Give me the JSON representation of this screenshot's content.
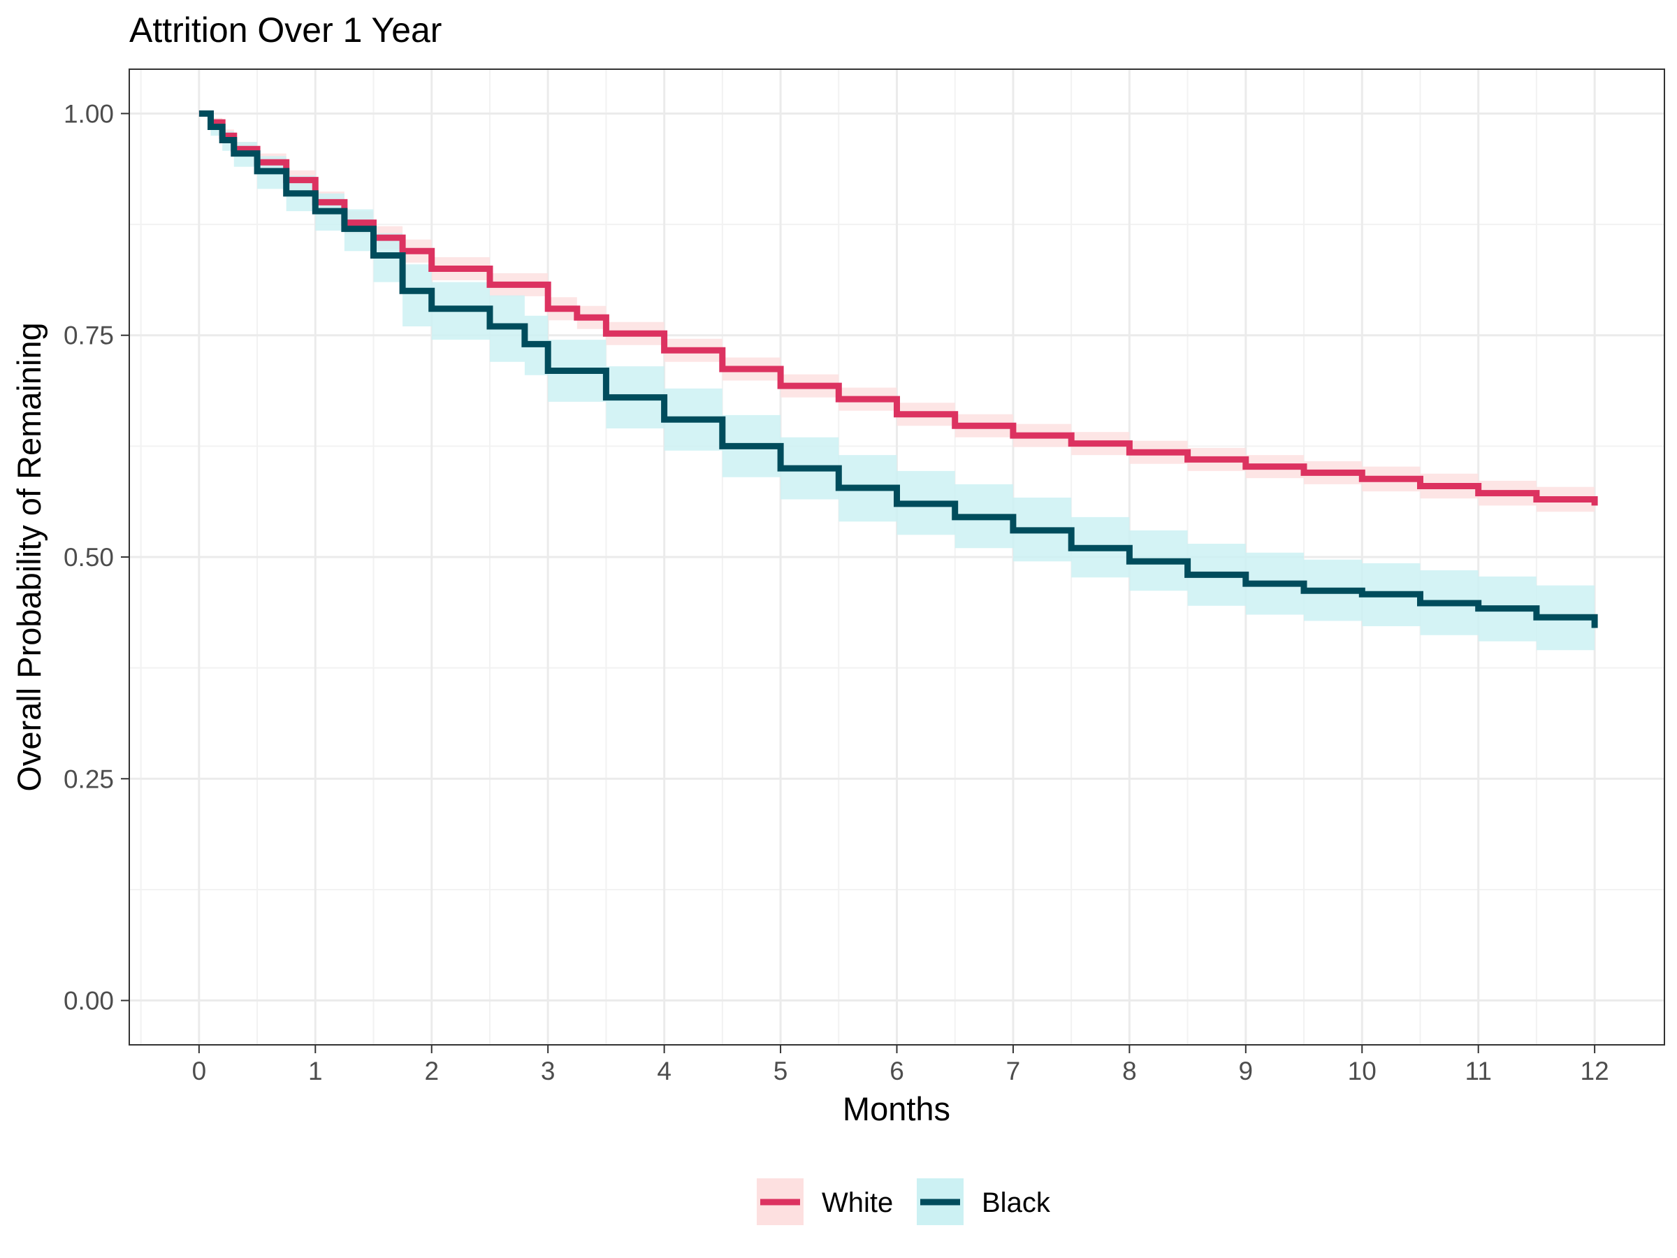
{
  "chart_data": {
    "type": "line",
    "title": "Attrition Over 1 Year",
    "xlabel": "Months",
    "ylabel": "Overall Probability of Remaining",
    "xlim": [
      -0.6,
      12.6
    ],
    "ylim": [
      -0.05,
      1.05
    ],
    "x_ticks": [
      "0",
      "1",
      "2",
      "3",
      "4",
      "5",
      "6",
      "7",
      "8",
      "9",
      "10",
      "11",
      "12"
    ],
    "y_ticks": [
      "0.00",
      "0.25",
      "0.50",
      "0.75",
      "1.00"
    ],
    "grid": true,
    "legend_position": "bottom",
    "step": true,
    "series": [
      {
        "name": "White",
        "color": "#DC3260",
        "band_color": "#FDE0E0",
        "points": [
          [
            0,
            1.0
          ],
          [
            0.1,
            0.99
          ],
          [
            0.2,
            0.975
          ],
          [
            0.3,
            0.96
          ],
          [
            0.5,
            0.945
          ],
          [
            0.75,
            0.925
          ],
          [
            1.0,
            0.9
          ],
          [
            1.25,
            0.877
          ],
          [
            1.5,
            0.86
          ],
          [
            1.75,
            0.845
          ],
          [
            2.0,
            0.825
          ],
          [
            2.5,
            0.807
          ],
          [
            3.0,
            0.78
          ],
          [
            3.25,
            0.77
          ],
          [
            3.5,
            0.752
          ],
          [
            4.0,
            0.733
          ],
          [
            4.5,
            0.712
          ],
          [
            5.0,
            0.693
          ],
          [
            5.5,
            0.678
          ],
          [
            6.0,
            0.661
          ],
          [
            6.5,
            0.648
          ],
          [
            7.0,
            0.637
          ],
          [
            7.5,
            0.628
          ],
          [
            8.0,
            0.618
          ],
          [
            8.5,
            0.61
          ],
          [
            9.0,
            0.602
          ],
          [
            9.5,
            0.595
          ],
          [
            10.0,
            0.588
          ],
          [
            10.5,
            0.58
          ],
          [
            11.0,
            0.572
          ],
          [
            11.5,
            0.565
          ],
          [
            12.0,
            0.558
          ]
        ],
        "lower": [
          [
            0,
            1.0
          ],
          [
            0.1,
            0.985
          ],
          [
            0.2,
            0.968
          ],
          [
            0.3,
            0.952
          ],
          [
            0.5,
            0.935
          ],
          [
            0.75,
            0.914
          ],
          [
            1.0,
            0.888
          ],
          [
            1.25,
            0.864
          ],
          [
            1.5,
            0.847
          ],
          [
            1.75,
            0.832
          ],
          [
            2.0,
            0.812
          ],
          [
            2.5,
            0.794
          ],
          [
            3.0,
            0.767
          ],
          [
            3.25,
            0.757
          ],
          [
            3.5,
            0.739
          ],
          [
            4.0,
            0.72
          ],
          [
            4.5,
            0.699
          ],
          [
            5.0,
            0.68
          ],
          [
            5.5,
            0.665
          ],
          [
            6.0,
            0.648
          ],
          [
            6.5,
            0.635
          ],
          [
            7.0,
            0.624
          ],
          [
            7.5,
            0.615
          ],
          [
            8.0,
            0.605
          ],
          [
            8.5,
            0.597
          ],
          [
            9.0,
            0.589
          ],
          [
            9.5,
            0.582
          ],
          [
            10.0,
            0.574
          ],
          [
            10.5,
            0.566
          ],
          [
            11.0,
            0.558
          ],
          [
            11.5,
            0.551
          ],
          [
            12.0,
            0.544
          ]
        ],
        "upper": [
          [
            0,
            1.0
          ],
          [
            0.1,
            0.995
          ],
          [
            0.2,
            0.982
          ],
          [
            0.3,
            0.968
          ],
          [
            0.5,
            0.955
          ],
          [
            0.75,
            0.936
          ],
          [
            1.0,
            0.912
          ],
          [
            1.25,
            0.89
          ],
          [
            1.5,
            0.873
          ],
          [
            1.75,
            0.858
          ],
          [
            2.0,
            0.838
          ],
          [
            2.5,
            0.82
          ],
          [
            3.0,
            0.793
          ],
          [
            3.25,
            0.783
          ],
          [
            3.5,
            0.765
          ],
          [
            4.0,
            0.746
          ],
          [
            4.5,
            0.725
          ],
          [
            5.0,
            0.706
          ],
          [
            5.5,
            0.691
          ],
          [
            6.0,
            0.674
          ],
          [
            6.5,
            0.661
          ],
          [
            7.0,
            0.65
          ],
          [
            7.5,
            0.641
          ],
          [
            8.0,
            0.631
          ],
          [
            8.5,
            0.623
          ],
          [
            9.0,
            0.615
          ],
          [
            9.5,
            0.608
          ],
          [
            10.0,
            0.602
          ],
          [
            10.5,
            0.594
          ],
          [
            11.0,
            0.586
          ],
          [
            11.5,
            0.579
          ],
          [
            12.0,
            0.572
          ]
        ]
      },
      {
        "name": "Black",
        "color": "#004C5C",
        "band_color": "#CCF1F3",
        "points": [
          [
            0,
            1.0
          ],
          [
            0.1,
            0.985
          ],
          [
            0.2,
            0.97
          ],
          [
            0.3,
            0.955
          ],
          [
            0.5,
            0.935
          ],
          [
            0.75,
            0.91
          ],
          [
            1.0,
            0.89
          ],
          [
            1.25,
            0.87
          ],
          [
            1.5,
            0.84
          ],
          [
            1.75,
            0.8
          ],
          [
            2.0,
            0.78
          ],
          [
            2.5,
            0.76
          ],
          [
            2.8,
            0.74
          ],
          [
            3.0,
            0.71
          ],
          [
            3.5,
            0.68
          ],
          [
            4.0,
            0.655
          ],
          [
            4.5,
            0.625
          ],
          [
            5.0,
            0.6
          ],
          [
            5.5,
            0.578
          ],
          [
            6.0,
            0.56
          ],
          [
            6.5,
            0.545
          ],
          [
            7.0,
            0.53
          ],
          [
            7.5,
            0.51
          ],
          [
            8.0,
            0.495
          ],
          [
            8.5,
            0.48
          ],
          [
            9.0,
            0.47
          ],
          [
            9.5,
            0.462
          ],
          [
            10.0,
            0.458
          ],
          [
            10.5,
            0.448
          ],
          [
            11.0,
            0.442
          ],
          [
            11.5,
            0.432
          ],
          [
            12.0,
            0.42
          ]
        ],
        "lower": [
          [
            0,
            1.0
          ],
          [
            0.1,
            0.975
          ],
          [
            0.2,
            0.958
          ],
          [
            0.3,
            0.94
          ],
          [
            0.5,
            0.915
          ],
          [
            0.75,
            0.89
          ],
          [
            1.0,
            0.868
          ],
          [
            1.25,
            0.845
          ],
          [
            1.5,
            0.81
          ],
          [
            1.75,
            0.76
          ],
          [
            2.0,
            0.745
          ],
          [
            2.5,
            0.72
          ],
          [
            2.8,
            0.705
          ],
          [
            3.0,
            0.675
          ],
          [
            3.5,
            0.645
          ],
          [
            4.0,
            0.62
          ],
          [
            4.5,
            0.59
          ],
          [
            5.0,
            0.565
          ],
          [
            5.5,
            0.54
          ],
          [
            6.0,
            0.525
          ],
          [
            6.5,
            0.51
          ],
          [
            7.0,
            0.495
          ],
          [
            7.5,
            0.477
          ],
          [
            8.0,
            0.462
          ],
          [
            8.5,
            0.445
          ],
          [
            9.0,
            0.435
          ],
          [
            9.5,
            0.428
          ],
          [
            10.0,
            0.422
          ],
          [
            10.5,
            0.412
          ],
          [
            11.0,
            0.405
          ],
          [
            11.5,
            0.395
          ],
          [
            12.0,
            0.388
          ]
        ],
        "upper": [
          [
            0,
            1.0
          ],
          [
            0.1,
            0.993
          ],
          [
            0.2,
            0.98
          ],
          [
            0.3,
            0.968
          ],
          [
            0.5,
            0.952
          ],
          [
            0.75,
            0.93
          ],
          [
            1.0,
            0.91
          ],
          [
            1.25,
            0.892
          ],
          [
            1.5,
            0.865
          ],
          [
            1.75,
            0.83
          ],
          [
            2.0,
            0.81
          ],
          [
            2.5,
            0.795
          ],
          [
            2.8,
            0.772
          ],
          [
            3.0,
            0.745
          ],
          [
            3.5,
            0.715
          ],
          [
            4.0,
            0.69
          ],
          [
            4.5,
            0.66
          ],
          [
            5.0,
            0.635
          ],
          [
            5.5,
            0.615
          ],
          [
            6.0,
            0.597
          ],
          [
            6.5,
            0.582
          ],
          [
            7.0,
            0.567
          ],
          [
            7.5,
            0.545
          ],
          [
            8.0,
            0.53
          ],
          [
            8.5,
            0.515
          ],
          [
            9.0,
            0.505
          ],
          [
            9.5,
            0.497
          ],
          [
            10.0,
            0.493
          ],
          [
            10.5,
            0.485
          ],
          [
            11.0,
            0.478
          ],
          [
            11.5,
            0.468
          ],
          [
            12.0,
            0.458
          ]
        ]
      }
    ]
  }
}
